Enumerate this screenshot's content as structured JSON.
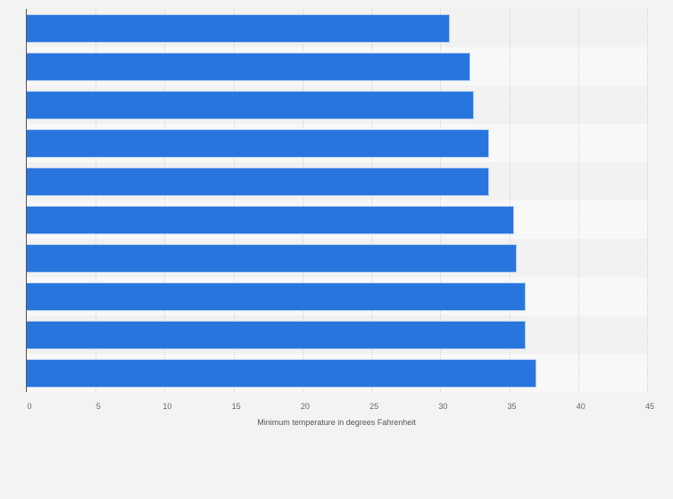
{
  "chart_data": {
    "type": "bar",
    "orientation": "horizontal",
    "title": "",
    "xlabel": "Minimum temperature in degrees Fahrenheit",
    "ylabel": "",
    "categories": [
      "",
      "",
      "",
      "",
      "",
      "",
      "",
      "",
      "",
      ""
    ],
    "values": [
      30.6,
      32.1,
      32.4,
      33.5,
      33.5,
      35.3,
      35.5,
      36.1,
      36.1,
      36.9
    ],
    "xlim": [
      0,
      45
    ],
    "xticks": [
      "0",
      "5",
      "10",
      "15",
      "20",
      "25",
      "30",
      "35",
      "40",
      "45"
    ],
    "grid": true,
    "legend": null,
    "bar_color": "#2876dd"
  }
}
